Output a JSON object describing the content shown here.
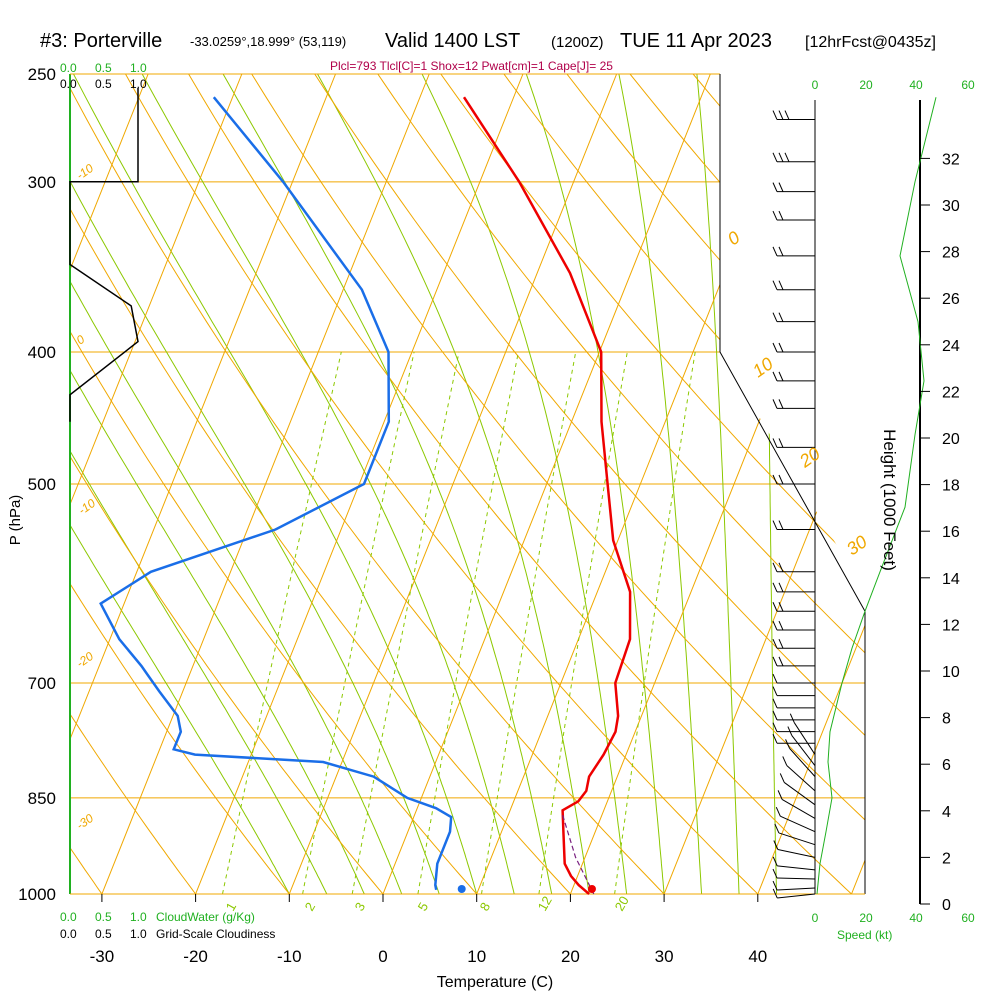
{
  "header": {
    "station": "#3: Porterville",
    "coords": "-33.0259°,18.999° (53,119)",
    "valid": "Valid 1400 LST",
    "utc": "(1200Z)",
    "date": "TUE 11 Apr 2023",
    "forecast": "[12hrFcst@0435z]"
  },
  "indices": "Plcl=793 Tlcl[C]=1 Shox=12 Pwat[cm]=1 Cape[J]= 25",
  "colors": {
    "temperature": "#ee0000",
    "dewpoint": "#1a6ee8",
    "isotherm_adiabat": "#f0a800",
    "moist_adiabat": "#8cc800",
    "green_text": "#20b020",
    "indices_text": "#b0004a"
  },
  "chart_data": {
    "type": "line",
    "diagram": "skew-T log-P",
    "xlabel": "Temperature (C)",
    "ylabel": "P (hPa)",
    "right_ylabel": "Height (1000 Feet)",
    "xlim": [
      -35,
      50
    ],
    "pressure_range": [
      1000,
      250
    ],
    "x_ticks": [
      "-30",
      "-20",
      "-10",
      "0",
      "10",
      "20",
      "30",
      "40"
    ],
    "x_tick_values": [
      -30,
      -20,
      -10,
      0,
      10,
      20,
      30,
      40
    ],
    "p_ticks": [
      "250",
      "300",
      "400",
      "500",
      "700",
      "850",
      "1000"
    ],
    "p_tick_values": [
      250,
      300,
      400,
      500,
      700,
      850,
      1000
    ],
    "height_ticks": [
      "0",
      "2",
      "4",
      "6",
      "8",
      "10",
      "12",
      "14",
      "16",
      "18",
      "20",
      "22",
      "24",
      "26",
      "28",
      "30",
      "32"
    ],
    "height_tick_values": [
      0,
      2,
      4,
      6,
      8,
      10,
      12,
      14,
      16,
      18,
      20,
      22,
      24,
      26,
      28,
      30,
      32
    ],
    "series": [
      {
        "key": "temperature",
        "pressure": [
          1000,
          985,
          970,
          950,
          900,
          868,
          855,
          840,
          820,
          790,
          760,
          740,
          700,
          650,
          600,
          550,
          500,
          450,
          400,
          350,
          300,
          260
        ],
        "values": [
          22,
          20.5,
          19.3,
          18.1,
          16.6,
          15.6,
          16.9,
          17.3,
          17.0,
          17.6,
          17.9,
          17.5,
          15.8,
          15.5,
          13.5,
          9.5,
          6.5,
          3.2,
          0.2,
          -6.5,
          -15.8,
          -25.3
        ]
      },
      {
        "key": "dewpoint",
        "pressure": [
          993,
          985,
          950,
          900,
          878,
          865,
          850,
          820,
          800,
          790,
          783,
          760,
          740,
          710,
          690,
          680,
          650,
          612,
          580,
          540,
          500,
          450,
          400,
          360,
          300,
          260
        ],
        "values": [
          5.5,
          5.2,
          4.5,
          4.5,
          4.0,
          2.0,
          -1.5,
          -6.0,
          -12.0,
          -26.0,
          -28.5,
          -28.5,
          -29.5,
          -32.5,
          -34.5,
          -35.5,
          -39.0,
          -42.5,
          -38.5,
          -27.0,
          -19.5,
          -19.5,
          -22.5,
          -28.0,
          -41.0,
          -52.0
        ]
      },
      {
        "key": "parcel",
        "pressure": [
          1000,
          940,
          875
        ],
        "values": [
          22.5,
          19.0,
          15.8
        ]
      }
    ],
    "surface": {
      "temperature": 22.3,
      "dewpoint": 8.4
    },
    "cloudwater": {
      "label": "CloudWater (g/Kg)",
      "ticks": [
        "0.0",
        "0.5",
        "1.0"
      ]
    },
    "cloudiness": {
      "label": "Grid-Scale Cloudiness",
      "ticks": [
        "0.0",
        "0.5",
        "1.0"
      ],
      "pressure": [
        256,
        300,
        300,
        320,
        335,
        345,
        370,
        393,
        430,
        450
      ],
      "values": [
        1.0,
        1.0,
        0.0,
        0.0,
        0.0,
        0.0,
        0.9,
        1.0,
        0.0,
        0.0
      ]
    },
    "wind_speed": {
      "label": "Speed (kt)",
      "ticks": [
        "0",
        "20",
        "40",
        "60"
      ]
    },
    "wind_barbs_pressure": [
      270,
      290,
      305,
      320,
      340,
      360,
      380,
      400,
      420,
      440,
      470,
      500,
      540,
      580,
      600,
      620,
      640,
      660,
      680,
      700,
      715,
      730,
      745,
      760,
      775,
      790,
      805,
      820,
      840,
      860,
      880,
      900,
      920,
      940,
      960,
      975,
      990,
      1000
    ],
    "isotherm_labels": [
      "-10",
      "0",
      "-10",
      "-20",
      "-30",
      "0",
      "10",
      "20",
      "30"
    ],
    "mixing_ratio_labels": [
      "1",
      "2",
      "3",
      "5",
      "8",
      "12",
      "20"
    ]
  }
}
